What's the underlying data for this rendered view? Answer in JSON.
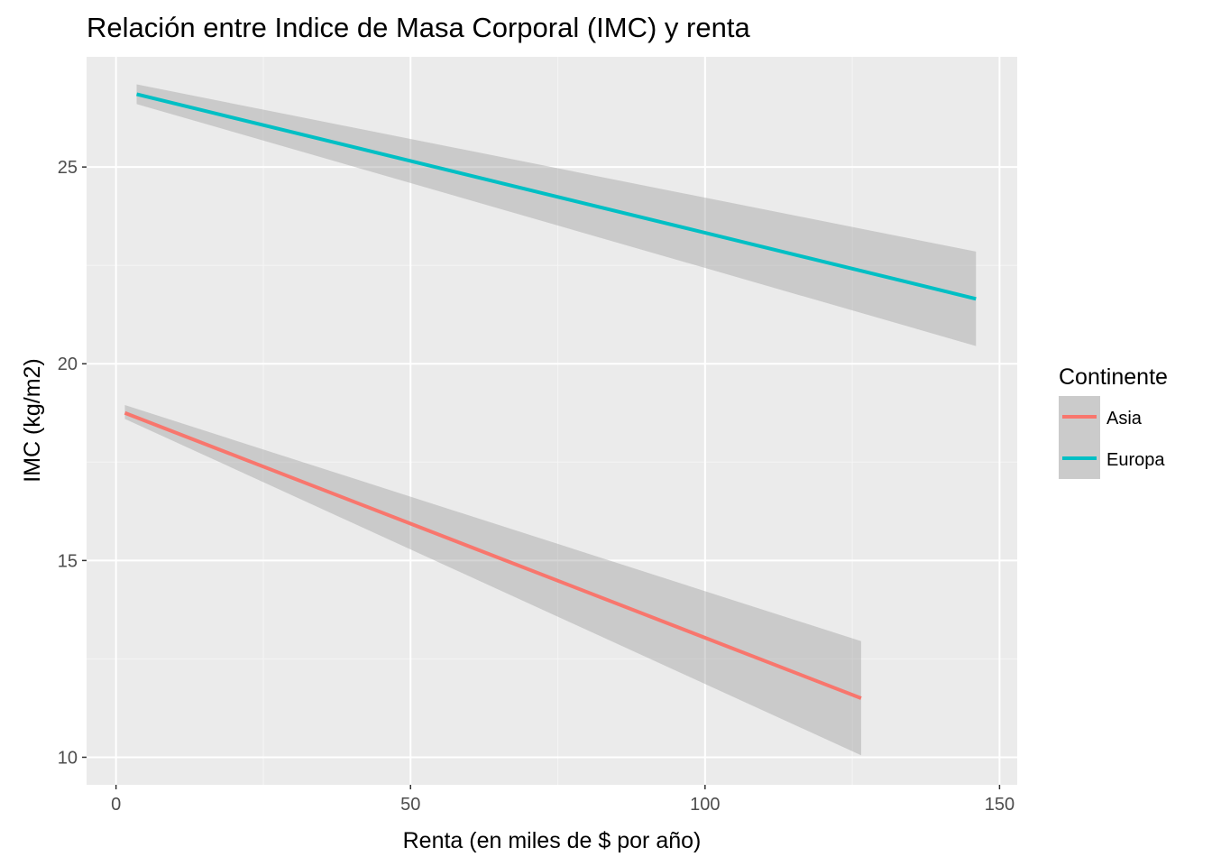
{
  "chart_data": {
    "type": "line",
    "title": "Relación entre Indice de Masa Corporal (IMC) y renta",
    "xlabel": "Renta (en miles de $ por año)",
    "ylabel": "IMC (kg/m2)",
    "xlim": [
      -5,
      153
    ],
    "ylim": [
      9.3,
      27.8
    ],
    "x_ticks": [
      0,
      50,
      100,
      150
    ],
    "x_tick_labels": [
      "0",
      "50",
      "100",
      "150"
    ],
    "y_ticks": [
      10,
      15,
      20,
      25
    ],
    "y_tick_labels": [
      "10",
      "15",
      "20",
      "25"
    ],
    "grid": true,
    "legend": {
      "title": "Continente",
      "placement": "right",
      "entries": [
        "Asia",
        "Europa"
      ]
    },
    "series": [
      {
        "name": "Asia",
        "color": "#F8766D",
        "x": [
          1.5,
          126.5
        ],
        "y": [
          18.75,
          11.5
        ],
        "band_lower": [
          18.6,
          10.05
        ],
        "band_upper": [
          18.95,
          12.95
        ]
      },
      {
        "name": "Europa",
        "color": "#00BFC4",
        "x": [
          3.5,
          146
        ],
        "y": [
          26.85,
          21.65
        ],
        "band_lower": [
          26.6,
          20.45
        ],
        "band_upper": [
          27.1,
          22.85
        ]
      }
    ]
  }
}
